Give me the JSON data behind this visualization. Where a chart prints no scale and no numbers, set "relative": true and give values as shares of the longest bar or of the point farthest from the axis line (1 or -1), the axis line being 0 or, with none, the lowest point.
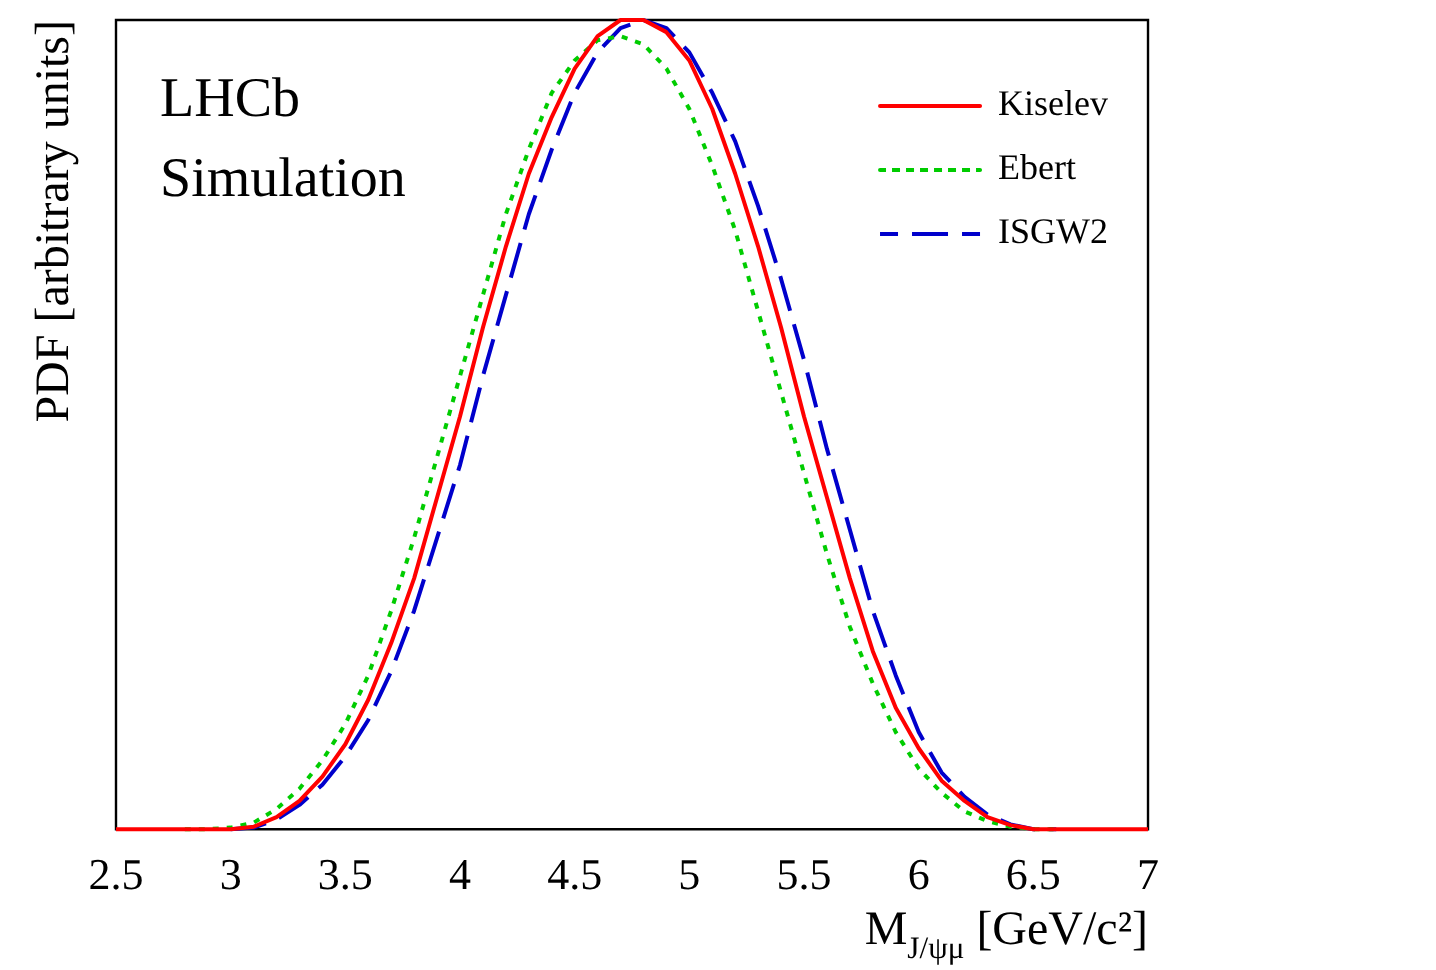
{
  "chart_data": {
    "type": "line",
    "relative": true,
    "xlabel": "M$_{J/ψμ}$ [GeV/c²]",
    "ylabel": "PDF [arbitrary units]",
    "annotations": [
      "LHCb",
      "Simulation"
    ],
    "x": [
      2.5,
      2.6,
      2.7,
      2.8,
      2.9,
      3.0,
      3.1,
      3.2,
      3.3,
      3.4,
      3.5,
      3.6,
      3.7,
      3.8,
      3.9,
      4.0,
      4.1,
      4.2,
      4.3,
      4.4,
      4.5,
      4.6,
      4.7,
      4.8,
      4.9,
      5.0,
      5.1,
      5.2,
      5.3,
      5.4,
      5.5,
      5.6,
      5.7,
      5.8,
      5.9,
      6.0,
      6.1,
      6.2,
      6.3,
      6.4,
      6.5,
      6.6,
      6.7,
      6.8,
      6.9,
      7.0
    ],
    "xlim": [
      2.5,
      7
    ],
    "xticks": [
      2.5,
      3,
      3.5,
      4,
      4.5,
      5,
      5.5,
      6,
      6.5,
      7
    ],
    "tick_labels": "x",
    "legend": "top right",
    "marker": "none",
    "series": [
      {
        "name": "Kiselev",
        "color": "#ff0000",
        "line_style": "solid",
        "values": [
          0,
          0,
          0,
          0,
          0,
          0,
          0.003,
          0.015,
          0.035,
          0.065,
          0.105,
          0.16,
          0.23,
          0.31,
          0.41,
          0.51,
          0.62,
          0.72,
          0.81,
          0.88,
          0.94,
          0.98,
          1.0,
          1.0,
          0.985,
          0.95,
          0.89,
          0.81,
          0.72,
          0.62,
          0.51,
          0.41,
          0.31,
          0.22,
          0.15,
          0.1,
          0.06,
          0.035,
          0.015,
          0.005,
          0,
          0,
          0,
          0,
          0,
          0
        ]
      },
      {
        "name": "Ebert",
        "color": "#00cc00",
        "line_style": "dotted",
        "values": [
          null,
          null,
          null,
          0,
          0,
          0.002,
          0.008,
          0.025,
          0.05,
          0.085,
          0.13,
          0.19,
          0.27,
          0.36,
          0.46,
          0.56,
          0.66,
          0.76,
          0.84,
          0.91,
          0.95,
          0.975,
          0.98,
          0.97,
          0.94,
          0.89,
          0.82,
          0.74,
          0.64,
          0.54,
          0.44,
          0.34,
          0.25,
          0.18,
          0.12,
          0.075,
          0.045,
          0.022,
          0.01,
          0.003,
          0,
          0,
          null,
          null,
          null,
          null
        ]
      },
      {
        "name": "ISGW2",
        "color": "#0000cc",
        "line_style": "dashed",
        "values": [
          null,
          null,
          null,
          null,
          null,
          0,
          0.002,
          0.012,
          0.03,
          0.055,
          0.09,
          0.135,
          0.195,
          0.27,
          0.36,
          0.45,
          0.56,
          0.66,
          0.76,
          0.84,
          0.91,
          0.96,
          0.99,
          1.0,
          0.99,
          0.96,
          0.91,
          0.85,
          0.77,
          0.68,
          0.58,
          0.47,
          0.37,
          0.27,
          0.19,
          0.12,
          0.07,
          0.04,
          0.018,
          0.006,
          0,
          0,
          null,
          null,
          null,
          null
        ]
      }
    ]
  }
}
